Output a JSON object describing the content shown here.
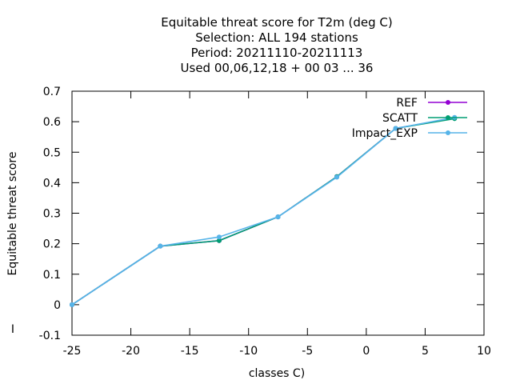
{
  "chart_data": {
    "type": "line",
    "title_lines": [
      "Equitable threat score  for T2m (deg C)",
      "Selection: ALL    194 stations",
      "Period: 20211110-20211113",
      "Used  00,06,12,18 + 00 03 ... 36"
    ],
    "xlabel": "classes C)",
    "ylabel": "Equitable threat score",
    "xlim": [
      -25,
      10
    ],
    "ylim": [
      -0.1,
      0.7
    ],
    "x_ticks": [
      -25,
      -20,
      -15,
      -10,
      -5,
      0,
      5,
      10
    ],
    "y_ticks": [
      -0.1,
      0,
      0.1,
      0.2,
      0.3,
      0.4,
      0.5,
      0.6,
      0.7
    ],
    "x_tick_labels": [
      "-25",
      "-20",
      "-15",
      "-10",
      "-5",
      "0",
      "5",
      "10"
    ],
    "y_tick_labels": [
      "-0.1",
      "0",
      "0.1",
      "0.2",
      "0.3",
      "0.4",
      "0.5",
      "0.6",
      "0.7"
    ],
    "legend_position": "top-right",
    "grid": false,
    "series": [
      {
        "name": "REF",
        "color": "#9400d3",
        "x": [
          -25,
          -17.5,
          -12.5,
          -7.5,
          -2.5,
          2.5,
          7.5
        ],
        "y": [
          0.0,
          0.192,
          0.21,
          0.288,
          0.42,
          0.578,
          0.612
        ]
      },
      {
        "name": "SCATT",
        "color": "#009e73",
        "x": [
          -25,
          -17.5,
          -12.5,
          -7.5,
          -2.5,
          2.5,
          7.5
        ],
        "y": [
          0.0,
          0.192,
          0.21,
          0.288,
          0.42,
          0.578,
          0.61
        ]
      },
      {
        "name": "Impact_EXP",
        "color": "#56b4e9",
        "x": [
          -25,
          -17.5,
          -12.5,
          -7.5,
          -2.5,
          2.5,
          7.5
        ],
        "y": [
          0.0,
          0.192,
          0.222,
          0.288,
          0.418,
          0.578,
          0.614
        ]
      }
    ],
    "annotation": "I"
  }
}
